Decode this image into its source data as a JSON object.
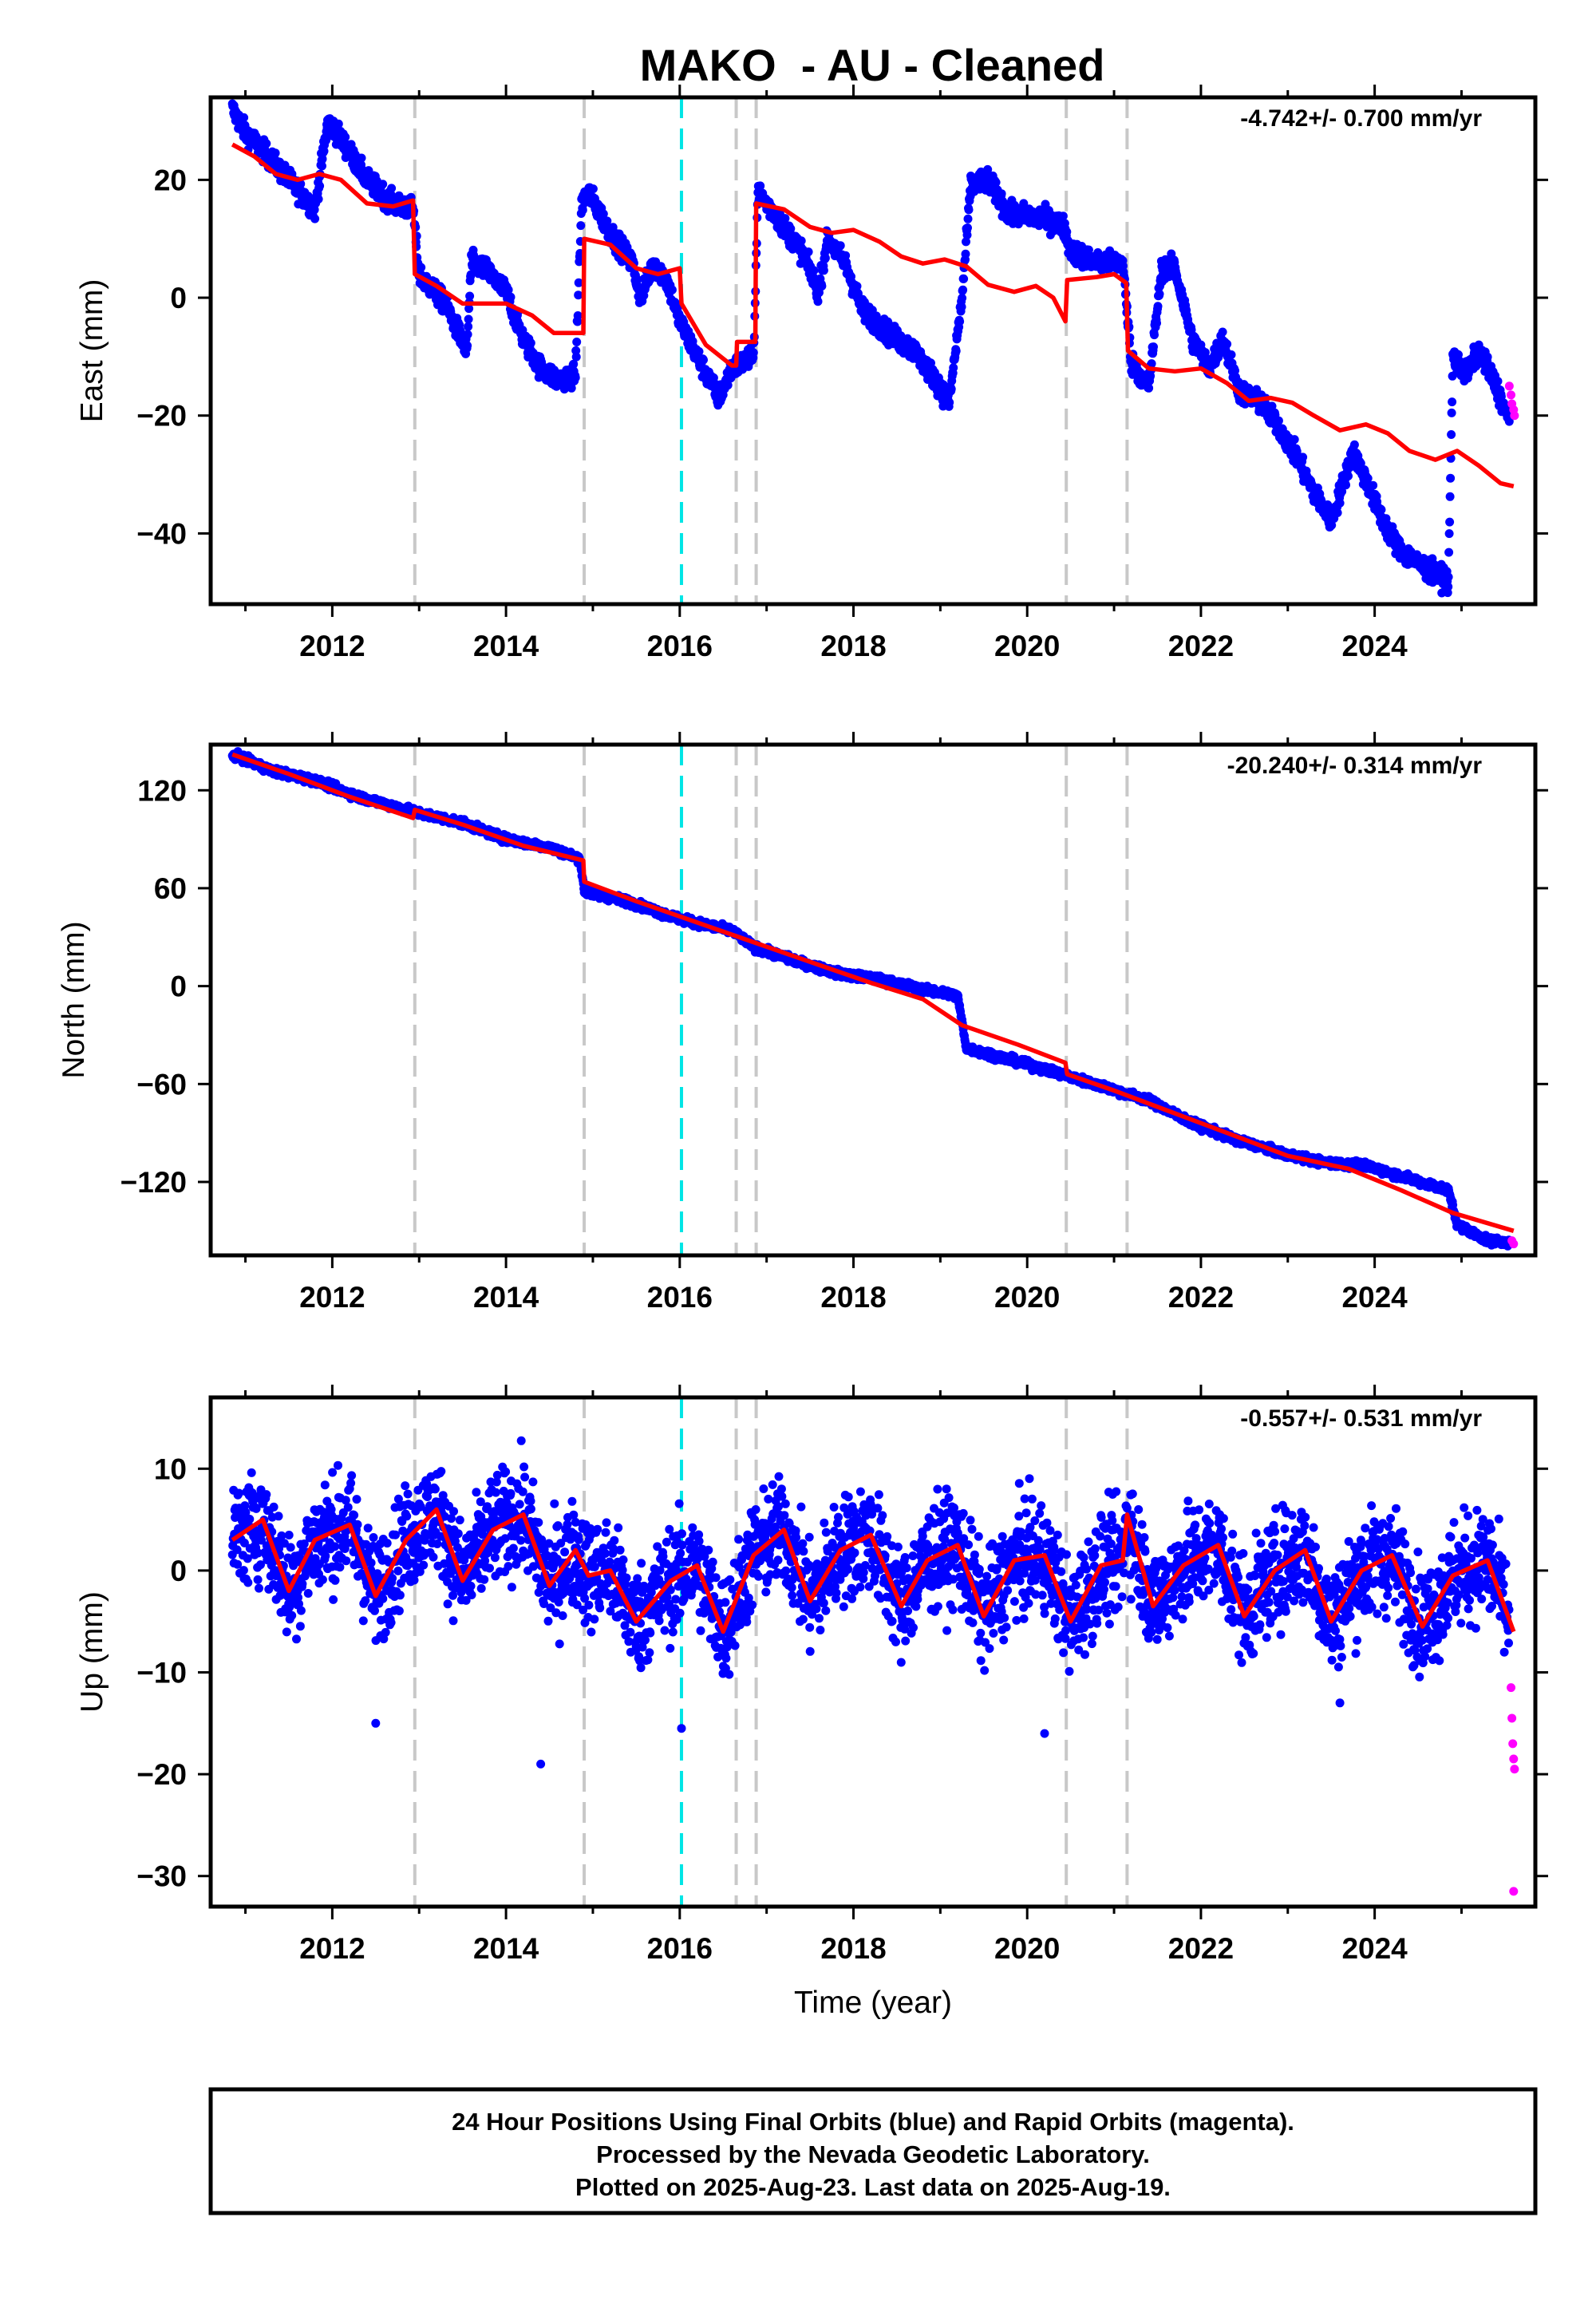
{
  "title": "MAKO  - AU - Cleaned",
  "footer": {
    "line1": "24 Hour Positions Using Final Orbits (blue) and Rapid Orbits (magenta).",
    "line2": "Processed by the Nevada Geodetic Laboratory.",
    "line3": "Plotted on 2025-Aug-23. Last data on 2025-Aug-19."
  },
  "colors": {
    "final_orbits": "#0000ff",
    "rapid_orbits": "#ff00ff",
    "model_fit": "#ff0000",
    "equipment_change": "#c8c8c8",
    "earthquake": "#00e5e5"
  },
  "chart_data": [
    {
      "type": "scatter",
      "name": "east",
      "title": "MAKO  - AU - Cleaned",
      "xlabel": "",
      "ylabel": "East (mm)",
      "rate": "-4.742+/- 0.700 mm/yr",
      "xlim": [
        2010.6,
        2025.85
      ],
      "ylim": [
        -52,
        34
      ],
      "x_ticks": [
        2012,
        2014,
        2016,
        2018,
        2020,
        2022,
        2024
      ],
      "y_ticks": [
        -40,
        -20,
        0,
        20
      ],
      "y_tick_labels": [
        "−40",
        "−20",
        "0",
        "20"
      ],
      "grey_dashed_lines": [
        2012.95,
        2014.9,
        2016.65,
        2016.88,
        2020.45,
        2021.15
      ],
      "cyan_dashed_lines": [
        2016.02
      ],
      "observed_trace": [
        [
          2010.85,
          32
        ],
        [
          2011.0,
          28
        ],
        [
          2011.2,
          25
        ],
        [
          2011.5,
          20
        ],
        [
          2011.8,
          15
        ],
        [
          2011.95,
          30
        ],
        [
          2012.1,
          27
        ],
        [
          2012.4,
          20
        ],
        [
          2012.7,
          16
        ],
        [
          2012.93,
          15
        ],
        [
          2013.0,
          4
        ],
        [
          2013.3,
          -1
        ],
        [
          2013.55,
          -9
        ],
        [
          2013.6,
          6
        ],
        [
          2013.75,
          5
        ],
        [
          2014.0,
          1
        ],
        [
          2014.2,
          -7
        ],
        [
          2014.4,
          -12
        ],
        [
          2014.6,
          -14
        ],
        [
          2014.8,
          -13
        ],
        [
          2014.87,
          16
        ],
        [
          2014.95,
          18
        ],
        [
          2015.2,
          11
        ],
        [
          2015.45,
          6
        ],
        [
          2015.55,
          0
        ],
        [
          2015.7,
          6
        ],
        [
          2015.85,
          3
        ],
        [
          2016.0,
          -4
        ],
        [
          2016.2,
          -10
        ],
        [
          2016.45,
          -17
        ],
        [
          2016.6,
          -12
        ],
        [
          2016.85,
          -10
        ],
        [
          2016.9,
          18
        ],
        [
          2017.1,
          14
        ],
        [
          2017.4,
          8
        ],
        [
          2017.6,
          1
        ],
        [
          2017.7,
          10
        ],
        [
          2017.9,
          6
        ],
        [
          2018.1,
          -2
        ],
        [
          2018.4,
          -6
        ],
        [
          2018.7,
          -9
        ],
        [
          2018.95,
          -14
        ],
        [
          2019.1,
          -18
        ],
        [
          2019.25,
          0
        ],
        [
          2019.35,
          19
        ],
        [
          2019.55,
          20
        ],
        [
          2019.8,
          14
        ],
        [
          2020.0,
          14
        ],
        [
          2020.3,
          13
        ],
        [
          2020.42,
          12
        ],
        [
          2020.5,
          8
        ],
        [
          2020.8,
          6
        ],
        [
          2021.1,
          6
        ],
        [
          2021.2,
          -11
        ],
        [
          2021.4,
          -15
        ],
        [
          2021.55,
          5
        ],
        [
          2021.7,
          5
        ],
        [
          2021.9,
          -7
        ],
        [
          2022.1,
          -12
        ],
        [
          2022.25,
          -7
        ],
        [
          2022.45,
          -16
        ],
        [
          2022.7,
          -18
        ],
        [
          2022.9,
          -22
        ],
        [
          2023.1,
          -27
        ],
        [
          2023.3,
          -33
        ],
        [
          2023.5,
          -38
        ],
        [
          2023.75,
          -26
        ],
        [
          2023.9,
          -31
        ],
        [
          2024.1,
          -38
        ],
        [
          2024.3,
          -43
        ],
        [
          2024.6,
          -46
        ],
        [
          2024.85,
          -48
        ],
        [
          2024.9,
          -10
        ],
        [
          2025.05,
          -13
        ],
        [
          2025.2,
          -9
        ],
        [
          2025.4,
          -15
        ],
        [
          2025.55,
          -21
        ]
      ],
      "model_fit": [
        [
          2010.85,
          26
        ],
        [
          2011.1,
          24
        ],
        [
          2011.35,
          21
        ],
        [
          2011.6,
          20
        ],
        [
          2011.85,
          21
        ],
        [
          2012.1,
          20
        ],
        [
          2012.4,
          16
        ],
        [
          2012.7,
          15.5
        ],
        [
          2012.93,
          16.5
        ],
        [
          2012.95,
          4
        ],
        [
          2013.2,
          2
        ],
        [
          2013.5,
          -1
        ],
        [
          2013.75,
          -1
        ],
        [
          2014.0,
          -1
        ],
        [
          2014.3,
          -3
        ],
        [
          2014.55,
          -6
        ],
        [
          2014.89,
          -6
        ],
        [
          2014.9,
          10
        ],
        [
          2015.2,
          9
        ],
        [
          2015.5,
          5
        ],
        [
          2015.75,
          4
        ],
        [
          2016.0,
          5
        ],
        [
          2016.02,
          -1
        ],
        [
          2016.3,
          -8
        ],
        [
          2016.6,
          -11.5
        ],
        [
          2016.65,
          -11.5
        ],
        [
          2016.66,
          -7.5
        ],
        [
          2016.87,
          -7.5
        ],
        [
          2016.88,
          16
        ],
        [
          2017.2,
          15
        ],
        [
          2017.5,
          12
        ],
        [
          2017.75,
          11
        ],
        [
          2018.0,
          11.5
        ],
        [
          2018.3,
          9.5
        ],
        [
          2018.55,
          7
        ],
        [
          2018.8,
          5.8
        ],
        [
          2019.05,
          6.5
        ],
        [
          2019.3,
          5.3
        ],
        [
          2019.55,
          2.2
        ],
        [
          2019.85,
          1
        ],
        [
          2020.1,
          2
        ],
        [
          2020.3,
          0
        ],
        [
          2020.44,
          -4
        ],
        [
          2020.46,
          3
        ],
        [
          2020.8,
          3.5
        ],
        [
          2021.0,
          4
        ],
        [
          2021.14,
          2.5
        ],
        [
          2021.16,
          -9
        ],
        [
          2021.4,
          -12
        ],
        [
          2021.7,
          -12.5
        ],
        [
          2022.0,
          -12
        ],
        [
          2022.3,
          -14.5
        ],
        [
          2022.55,
          -17.5
        ],
        [
          2022.8,
          -17
        ],
        [
          2023.05,
          -17.8
        ],
        [
          2023.3,
          -20
        ],
        [
          2023.6,
          -22.5
        ],
        [
          2023.9,
          -21.5
        ],
        [
          2024.15,
          -23
        ],
        [
          2024.4,
          -26
        ],
        [
          2024.7,
          -27.5
        ],
        [
          2024.95,
          -26
        ],
        [
          2025.2,
          -28.5
        ],
        [
          2025.45,
          -31.5
        ],
        [
          2025.6,
          -32
        ]
      ],
      "rapid": [
        [
          2025.55,
          -15
        ],
        [
          2025.57,
          -16.5
        ],
        [
          2025.58,
          -18
        ],
        [
          2025.6,
          -19
        ],
        [
          2025.61,
          -20
        ]
      ]
    },
    {
      "type": "scatter",
      "name": "north",
      "xlabel": "",
      "ylabel": "North (mm)",
      "rate": "-20.240+/- 0.314 mm/yr",
      "xlim": [
        2010.6,
        2025.85
      ],
      "ylim": [
        -165,
        148
      ],
      "x_ticks": [
        2012,
        2014,
        2016,
        2018,
        2020,
        2022,
        2024
      ],
      "y_ticks": [
        -120,
        -60,
        0,
        60,
        120
      ],
      "y_tick_labels": [
        "−120",
        "−60",
        "0",
        "60",
        "120"
      ],
      "grey_dashed_lines": [
        2012.95,
        2014.9,
        2016.65,
        2016.88,
        2020.45,
        2021.15
      ],
      "cyan_dashed_lines": [
        2016.02
      ],
      "observed_trace": [
        [
          2010.85,
          142
        ],
        [
          2011.3,
          132
        ],
        [
          2011.8,
          126
        ],
        [
          2012.3,
          116
        ],
        [
          2012.93,
          107
        ],
        [
          2013.0,
          106
        ],
        [
          2013.5,
          100
        ],
        [
          2014.0,
          90
        ],
        [
          2014.5,
          85
        ],
        [
          2014.85,
          78
        ],
        [
          2014.9,
          58
        ],
        [
          2015.4,
          52
        ],
        [
          2016.0,
          41
        ],
        [
          2016.6,
          34
        ],
        [
          2016.85,
          24
        ],
        [
          2017.3,
          16
        ],
        [
          2017.8,
          8
        ],
        [
          2018.3,
          4
        ],
        [
          2018.8,
          -2
        ],
        [
          2019.2,
          -6
        ],
        [
          2019.3,
          -38
        ],
        [
          2019.8,
          -45
        ],
        [
          2020.4,
          -54
        ],
        [
          2020.9,
          -62
        ],
        [
          2021.4,
          -70
        ],
        [
          2021.9,
          -84
        ],
        [
          2022.4,
          -94
        ],
        [
          2022.9,
          -102
        ],
        [
          2023.4,
          -108
        ],
        [
          2023.9,
          -110
        ],
        [
          2024.4,
          -118
        ],
        [
          2024.85,
          -125
        ],
        [
          2024.95,
          -146
        ],
        [
          2025.3,
          -156
        ],
        [
          2025.55,
          -157
        ]
      ],
      "model_fit": [
        [
          2010.85,
          142
        ],
        [
          2011.5,
          130
        ],
        [
          2012.2,
          116
        ],
        [
          2012.93,
          103
        ],
        [
          2012.95,
          108
        ],
        [
          2013.5,
          99
        ],
        [
          2014.2,
          86
        ],
        [
          2014.89,
          77
        ],
        [
          2014.9,
          64
        ],
        [
          2015.5,
          52
        ],
        [
          2016.2,
          39
        ],
        [
          2016.9,
          26
        ],
        [
          2017.6,
          13
        ],
        [
          2018.2,
          2
        ],
        [
          2018.8,
          -8
        ],
        [
          2019.25,
          -24
        ],
        [
          2019.9,
          -36
        ],
        [
          2020.44,
          -47
        ],
        [
          2020.46,
          -54
        ],
        [
          2021.0,
          -64
        ],
        [
          2021.6,
          -76
        ],
        [
          2022.3,
          -90
        ],
        [
          2023.0,
          -104
        ],
        [
          2023.7,
          -112
        ],
        [
          2024.3,
          -125
        ],
        [
          2024.9,
          -139
        ],
        [
          2025.6,
          -150
        ]
      ],
      "rapid": [
        [
          2025.58,
          -156
        ],
        [
          2025.6,
          -158
        ]
      ]
    },
    {
      "type": "scatter",
      "name": "up",
      "xlabel": "Time (year)",
      "ylabel": "Up (mm)",
      "rate": "-0.557+/- 0.531 mm/yr",
      "xlim": [
        2010.6,
        2025.85
      ],
      "ylim": [
        -33,
        17
      ],
      "x_ticks": [
        2012,
        2014,
        2016,
        2018,
        2020,
        2022,
        2024
      ],
      "y_ticks": [
        -30,
        -20,
        -10,
        0,
        10
      ],
      "y_tick_labels": [
        "−30",
        "−20",
        "−10",
        "0",
        "10"
      ],
      "grey_dashed_lines": [
        2012.95,
        2014.9,
        2016.65,
        2016.88,
        2020.45,
        2021.15
      ],
      "cyan_dashed_lines": [
        2016.02
      ],
      "seasonal_amplitude_mm": 4.5,
      "noise_range_mm": 5,
      "outliers": [
        [
          2014.4,
          -19
        ],
        [
          2016.02,
          -15.5
        ],
        [
          2012.5,
          -15
        ],
        [
          2023.6,
          -13
        ],
        [
          2020.2,
          -16
        ]
      ],
      "model_fit": [
        [
          2010.85,
          3
        ],
        [
          2011.2,
          5
        ],
        [
          2011.5,
          -2
        ],
        [
          2011.8,
          3
        ],
        [
          2012.2,
          4.5
        ],
        [
          2012.5,
          -2.5
        ],
        [
          2012.85,
          3
        ],
        [
          2013.2,
          6
        ],
        [
          2013.5,
          -1
        ],
        [
          2013.85,
          4
        ],
        [
          2014.2,
          5.5
        ],
        [
          2014.5,
          -1.5
        ],
        [
          2014.8,
          2
        ],
        [
          2014.95,
          -0.5
        ],
        [
          2015.2,
          0
        ],
        [
          2015.5,
          -5
        ],
        [
          2015.9,
          -1
        ],
        [
          2016.2,
          0.5
        ],
        [
          2016.5,
          -6
        ],
        [
          2016.85,
          1.5
        ],
        [
          2017.2,
          4
        ],
        [
          2017.5,
          -3
        ],
        [
          2017.85,
          2
        ],
        [
          2018.2,
          3.5
        ],
        [
          2018.55,
          -3.5
        ],
        [
          2018.85,
          1
        ],
        [
          2019.2,
          2.5
        ],
        [
          2019.5,
          -4.5
        ],
        [
          2019.85,
          1
        ],
        [
          2020.2,
          1.5
        ],
        [
          2020.5,
          -5
        ],
        [
          2020.85,
          0.5
        ],
        [
          2021.1,
          1
        ],
        [
          2021.15,
          5.5
        ],
        [
          2021.45,
          -3.5
        ],
        [
          2021.8,
          0.5
        ],
        [
          2022.2,
          2.5
        ],
        [
          2022.5,
          -4.5
        ],
        [
          2022.85,
          0
        ],
        [
          2023.2,
          2
        ],
        [
          2023.5,
          -5
        ],
        [
          2023.85,
          0
        ],
        [
          2024.2,
          1.5
        ],
        [
          2024.55,
          -5.5
        ],
        [
          2024.9,
          -0.5
        ],
        [
          2025.3,
          1
        ],
        [
          2025.6,
          -6
        ]
      ],
      "rapid": [
        [
          2025.57,
          -11.5
        ],
        [
          2025.58,
          -14.5
        ],
        [
          2025.59,
          -17
        ],
        [
          2025.6,
          -18.5
        ],
        [
          2025.61,
          -19.5
        ],
        [
          2025.6,
          -31.5
        ]
      ]
    }
  ]
}
